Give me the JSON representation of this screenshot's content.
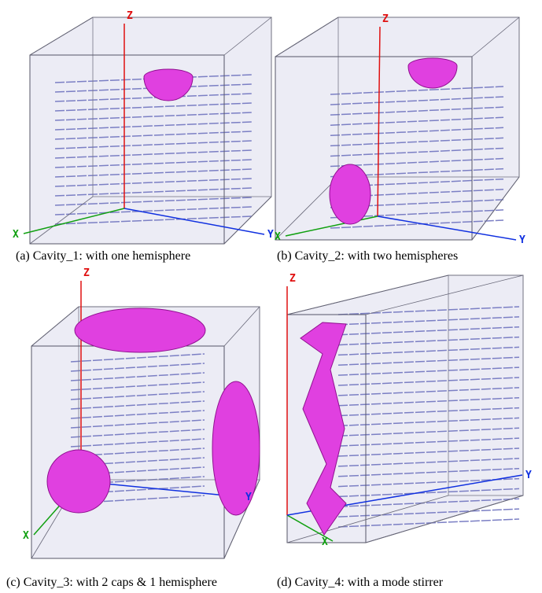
{
  "panels": [
    {
      "caption": "(a) Cavity_1:  with one hemisphere",
      "axes": {
        "z": "Z",
        "x": "X",
        "y": "Y"
      }
    },
    {
      "caption": "(b) Cavity_2:  with two hemispheres",
      "axes": {
        "z": "Z",
        "x": "X",
        "y": "Y"
      }
    },
    {
      "caption": "(c) Cavity_3: with 2 caps & 1 hemisphere",
      "axes": {
        "z": "Z",
        "x": "X",
        "y": "Y"
      }
    },
    {
      "caption": "(d) Cavity_4: with a mode stirrer",
      "axes": {
        "z": "Z",
        "x": "X",
        "y": "Y"
      }
    }
  ]
}
